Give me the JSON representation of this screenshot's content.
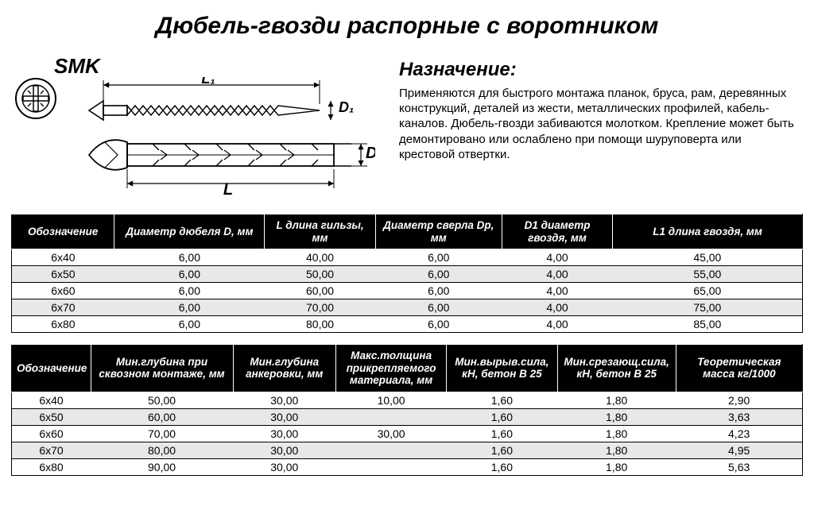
{
  "title": "Дюбель-гвозди распорные с воротником",
  "brand": "SMK",
  "diagram_labels": {
    "L": "L",
    "L1": "L₁",
    "D": "D",
    "D1": "D₁"
  },
  "purpose": {
    "heading": "Назначение:",
    "text": "Применяются для быстрого монтажа планок, бруса, рам, деревянных конструкций, деталей из жести, металлических профилей, кабель-каналов. Дюбель-гвозди забиваются молотком. Крепление может быть демонтировано или ослаблено при помощи шуруповерта или крестовой отвертки."
  },
  "table1": {
    "columns": [
      "Обозначение",
      "Диаметр дюбеля D, мм",
      "L длина гильзы, мм",
      "Диаметр сверла Dp, мм",
      "D1 диаметр гвоздя, мм",
      "L1 длина гвоздя, мм"
    ],
    "rows": [
      [
        "6х40",
        "6,00",
        "40,00",
        "6,00",
        "4,00",
        "45,00"
      ],
      [
        "6х50",
        "6,00",
        "50,00",
        "6,00",
        "4,00",
        "55,00"
      ],
      [
        "6х60",
        "6,00",
        "60,00",
        "6,00",
        "4,00",
        "65,00"
      ],
      [
        "6х70",
        "6,00",
        "70,00",
        "6,00",
        "4,00",
        "75,00"
      ],
      [
        "6х80",
        "6,00",
        "80,00",
        "6,00",
        "4,00",
        "85,00"
      ]
    ]
  },
  "table2": {
    "columns": [
      "Обозначение",
      "Мин.глубина при сквозном монтаже, мм",
      "Мин.глубина анкеровки, мм",
      "Макс.толщина прикрепляемого материала, мм",
      "Мин.вырыв.сила, кН, бетон В 25",
      "Мин.срезающ.сила, кН, бетон В 25",
      "Теоретическая масса кг/1000"
    ],
    "rows": [
      [
        "6х40",
        "50,00",
        "30,00",
        "10,00",
        "1,60",
        "1,80",
        "2,90"
      ],
      [
        "6х50",
        "60,00",
        "30,00",
        "",
        "1,60",
        "1,80",
        "3,63"
      ],
      [
        "6х60",
        "70,00",
        "30,00",
        "30,00",
        "1,60",
        "1,80",
        "4,23"
      ],
      [
        "6х70",
        "80,00",
        "30,00",
        "",
        "1,60",
        "1,80",
        "4,95"
      ],
      [
        "6х80",
        "90,00",
        "30,00",
        "",
        "1,60",
        "1,80",
        "5,63"
      ]
    ]
  },
  "style": {
    "header_bg": "#000000",
    "header_fg": "#ffffff",
    "row_alt_bg": "#e8e8e8",
    "border_color": "#000000",
    "text_color": "#000000",
    "title_fontsize": 30,
    "body_fontsize": 15,
    "table_fontsize": 14
  }
}
